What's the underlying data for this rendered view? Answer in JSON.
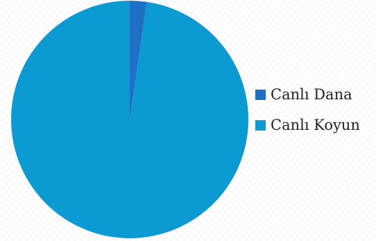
{
  "chart_data": {
    "type": "pie",
    "title": "",
    "categories": [
      "Canlı Dana",
      "Canlı Koyun"
    ],
    "values": [
      2.3,
      97.7
    ],
    "colors": [
      "#1f6fc6",
      "#0c9ad3"
    ],
    "start_angle_deg": 0,
    "direction": "clockwise",
    "legend_position": "right"
  }
}
